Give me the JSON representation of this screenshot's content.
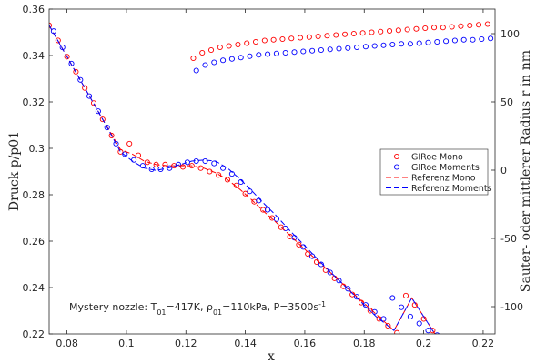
{
  "chart_data": {
    "type": "scatter",
    "xlabel": "x",
    "ylabel_left": "Druck p/p01",
    "ylabel_right": "Sauter- oder mittlerer Radius r in nm",
    "xlim": [
      0.074,
      0.224
    ],
    "ylim_left": [
      0.22,
      0.36
    ],
    "ylim_right": [
      -120,
      118
    ],
    "x_ticks": [
      0.08,
      0.1,
      0.12,
      0.14,
      0.16,
      0.18,
      0.2,
      0.22
    ],
    "x_tick_labels": [
      "0.08",
      "0.1",
      "0.12",
      "0.14",
      "0.16",
      "0.18",
      "0.2",
      "0.22"
    ],
    "y_left_ticks": [
      0.22,
      0.24,
      0.26,
      0.28,
      0.3,
      0.32,
      0.34,
      0.36
    ],
    "y_left_tick_labels": [
      "0.22",
      "0.24",
      "0.26",
      "0.28",
      "0.3",
      "0.32",
      "0.34",
      "0.36"
    ],
    "y_right_ticks": [
      -100,
      -50,
      0,
      50,
      100
    ],
    "y_right_tick_labels": [
      "-100",
      "-50",
      "0",
      "50",
      "100"
    ],
    "grid": false,
    "legend_position": "right",
    "annotation": {
      "prefix": "Mystery nozzle: T",
      "sub1": "01",
      "mid1": "=417K, ρ",
      "sub2": "01",
      "mid2": "=110kPa, P=3500s",
      "sup": "-1"
    },
    "colors": {
      "mono": "#ff0000",
      "moments": "#0000ff",
      "axis": "#262626"
    },
    "series": [
      {
        "name": "GIRoe Mono",
        "style": "marker",
        "color": "#ff0000",
        "axis": "left",
        "x": [
          0.074,
          0.077,
          0.08,
          0.083,
          0.086,
          0.089,
          0.092,
          0.095,
          0.098,
          0.101,
          0.104,
          0.107,
          0.11,
          0.113,
          0.116,
          0.119,
          0.122,
          0.125,
          0.128,
          0.131,
          0.134,
          0.137,
          0.14,
          0.143,
          0.146,
          0.149,
          0.152,
          0.155,
          0.158,
          0.161,
          0.164,
          0.167,
          0.17,
          0.173,
          0.176,
          0.179,
          0.182,
          0.185,
          0.188,
          0.191,
          0.194,
          0.197,
          0.2,
          0.203
        ],
        "y": [
          0.353,
          0.3465,
          0.3395,
          0.333,
          0.326,
          0.3195,
          0.3125,
          0.3055,
          0.2985,
          0.302,
          0.297,
          0.294,
          0.293,
          0.293,
          0.2925,
          0.292,
          0.2925,
          0.2915,
          0.29,
          0.2885,
          0.2865,
          0.284,
          0.2805,
          0.277,
          0.2735,
          0.27,
          0.266,
          0.262,
          0.2585,
          0.2545,
          0.251,
          0.2475,
          0.244,
          0.2405,
          0.237,
          0.2335,
          0.23,
          0.2265,
          0.2235,
          0.2205,
          0.2365,
          0.2325,
          0.2265,
          0.2215
        ]
      },
      {
        "name": "GIRoe Moments",
        "style": "marker",
        "color": "#0000ff",
        "axis": "left",
        "x": [
          0.0755,
          0.0785,
          0.0815,
          0.0845,
          0.0875,
          0.0905,
          0.0935,
          0.0965,
          0.0995,
          0.1025,
          0.1055,
          0.1085,
          0.1115,
          0.1145,
          0.1175,
          0.1205,
          0.1235,
          0.1265,
          0.1295,
          0.1325,
          0.1355,
          0.1385,
          0.1415,
          0.1445,
          0.1475,
          0.1505,
          0.1535,
          0.1565,
          0.1595,
          0.1625,
          0.1655,
          0.1685,
          0.1715,
          0.1745,
          0.1775,
          0.1805,
          0.1835,
          0.1865,
          0.1895,
          0.1925,
          0.1955,
          0.1985,
          0.2015,
          0.2045
        ],
        "y": [
          0.3505,
          0.3435,
          0.3365,
          0.3295,
          0.3225,
          0.316,
          0.309,
          0.302,
          0.2975,
          0.295,
          0.2925,
          0.291,
          0.291,
          0.2915,
          0.293,
          0.294,
          0.2945,
          0.2945,
          0.2935,
          0.2915,
          0.289,
          0.2855,
          0.2815,
          0.2775,
          0.2735,
          0.2695,
          0.2655,
          0.2615,
          0.2575,
          0.2535,
          0.25,
          0.2465,
          0.243,
          0.2395,
          0.236,
          0.2325,
          0.2295,
          0.2265,
          0.2355,
          0.2315,
          0.2275,
          0.2245,
          0.2215,
          0.2195
        ]
      },
      {
        "name": "Referenz Mono",
        "style": "dashed",
        "color": "#ff0000",
        "axis": "left",
        "x": [
          0.074,
          0.08,
          0.086,
          0.092,
          0.098,
          0.102,
          0.106,
          0.11,
          0.114,
          0.118,
          0.122,
          0.126,
          0.13,
          0.134,
          0.138,
          0.142,
          0.146,
          0.15,
          0.155,
          0.16,
          0.166,
          0.172,
          0.178,
          0.184,
          0.19,
          0.196,
          0.2,
          0.204
        ],
        "y": [
          0.353,
          0.3395,
          0.326,
          0.3125,
          0.2995,
          0.2975,
          0.2945,
          0.293,
          0.2925,
          0.2925,
          0.2925,
          0.2915,
          0.2895,
          0.2865,
          0.2825,
          0.278,
          0.273,
          0.2685,
          0.2625,
          0.2565,
          0.2495,
          0.2425,
          0.2355,
          0.2285,
          0.2215,
          0.2355,
          0.2275,
          0.2195
        ]
      },
      {
        "name": "Referenz Moments",
        "style": "dashed",
        "color": "#0000ff",
        "axis": "left",
        "x": [
          0.074,
          0.08,
          0.086,
          0.092,
          0.098,
          0.102,
          0.106,
          0.11,
          0.114,
          0.118,
          0.122,
          0.126,
          0.13,
          0.134,
          0.138,
          0.142,
          0.146,
          0.15,
          0.155,
          0.16,
          0.166,
          0.172,
          0.178,
          0.184,
          0.19,
          0.196,
          0.2,
          0.204
        ],
        "y": [
          0.353,
          0.3395,
          0.326,
          0.3125,
          0.2985,
          0.2945,
          0.2915,
          0.2905,
          0.2915,
          0.293,
          0.2945,
          0.295,
          0.2945,
          0.2915,
          0.287,
          0.282,
          0.2765,
          0.2715,
          0.2645,
          0.258,
          0.25,
          0.2425,
          0.235,
          0.2275,
          0.2215,
          0.2355,
          0.2275,
          0.2195
        ]
      },
      {
        "name": "GIRoe Mono",
        "style": "marker",
        "color": "#ff0000",
        "axis": "right",
        "x": [
          0.1225,
          0.1255,
          0.1285,
          0.1315,
          0.1345,
          0.1375,
          0.1405,
          0.1435,
          0.1465,
          0.1495,
          0.1525,
          0.1555,
          0.1585,
          0.1615,
          0.1645,
          0.1675,
          0.1705,
          0.1735,
          0.1765,
          0.1795,
          0.1825,
          0.1855,
          0.1885,
          0.1915,
          0.1945,
          0.1975,
          0.2005,
          0.2035,
          0.2065,
          0.2095,
          0.2125,
          0.2155,
          0.2185,
          0.2215
        ],
        "y": [
          82,
          86,
          88,
          90,
          91,
          92,
          93,
          94,
          95,
          95.5,
          96,
          96.5,
          97,
          97.5,
          98,
          98.5,
          99,
          99.5,
          100,
          100.5,
          101,
          101.5,
          102,
          102.5,
          103,
          103.5,
          104,
          104.5,
          104.5,
          105,
          105.5,
          106,
          106.5,
          107
        ]
      },
      {
        "name": "GIRoe Moments",
        "style": "marker",
        "color": "#0000ff",
        "axis": "right",
        "x": [
          0.1235,
          0.1265,
          0.1295,
          0.1325,
          0.1355,
          0.1385,
          0.1415,
          0.1445,
          0.1475,
          0.1505,
          0.1535,
          0.1565,
          0.1595,
          0.1625,
          0.1655,
          0.1685,
          0.1715,
          0.1745,
          0.1775,
          0.1805,
          0.1835,
          0.1865,
          0.1895,
          0.1925,
          0.1955,
          0.1985,
          0.2015,
          0.2045,
          0.2075,
          0.2105,
          0.2135,
          0.2165,
          0.2195,
          0.2225
        ],
        "y": [
          73,
          77,
          79,
          80.5,
          81.5,
          82.5,
          83.5,
          84.5,
          85,
          85.5,
          86,
          86.5,
          87,
          87.5,
          88,
          88.5,
          89,
          89.5,
          90,
          90.5,
          91,
          91.5,
          92,
          92.5,
          92.5,
          93,
          93.5,
          94,
          94.5,
          95,
          95.5,
          95.5,
          96,
          96.5
        ]
      }
    ]
  }
}
